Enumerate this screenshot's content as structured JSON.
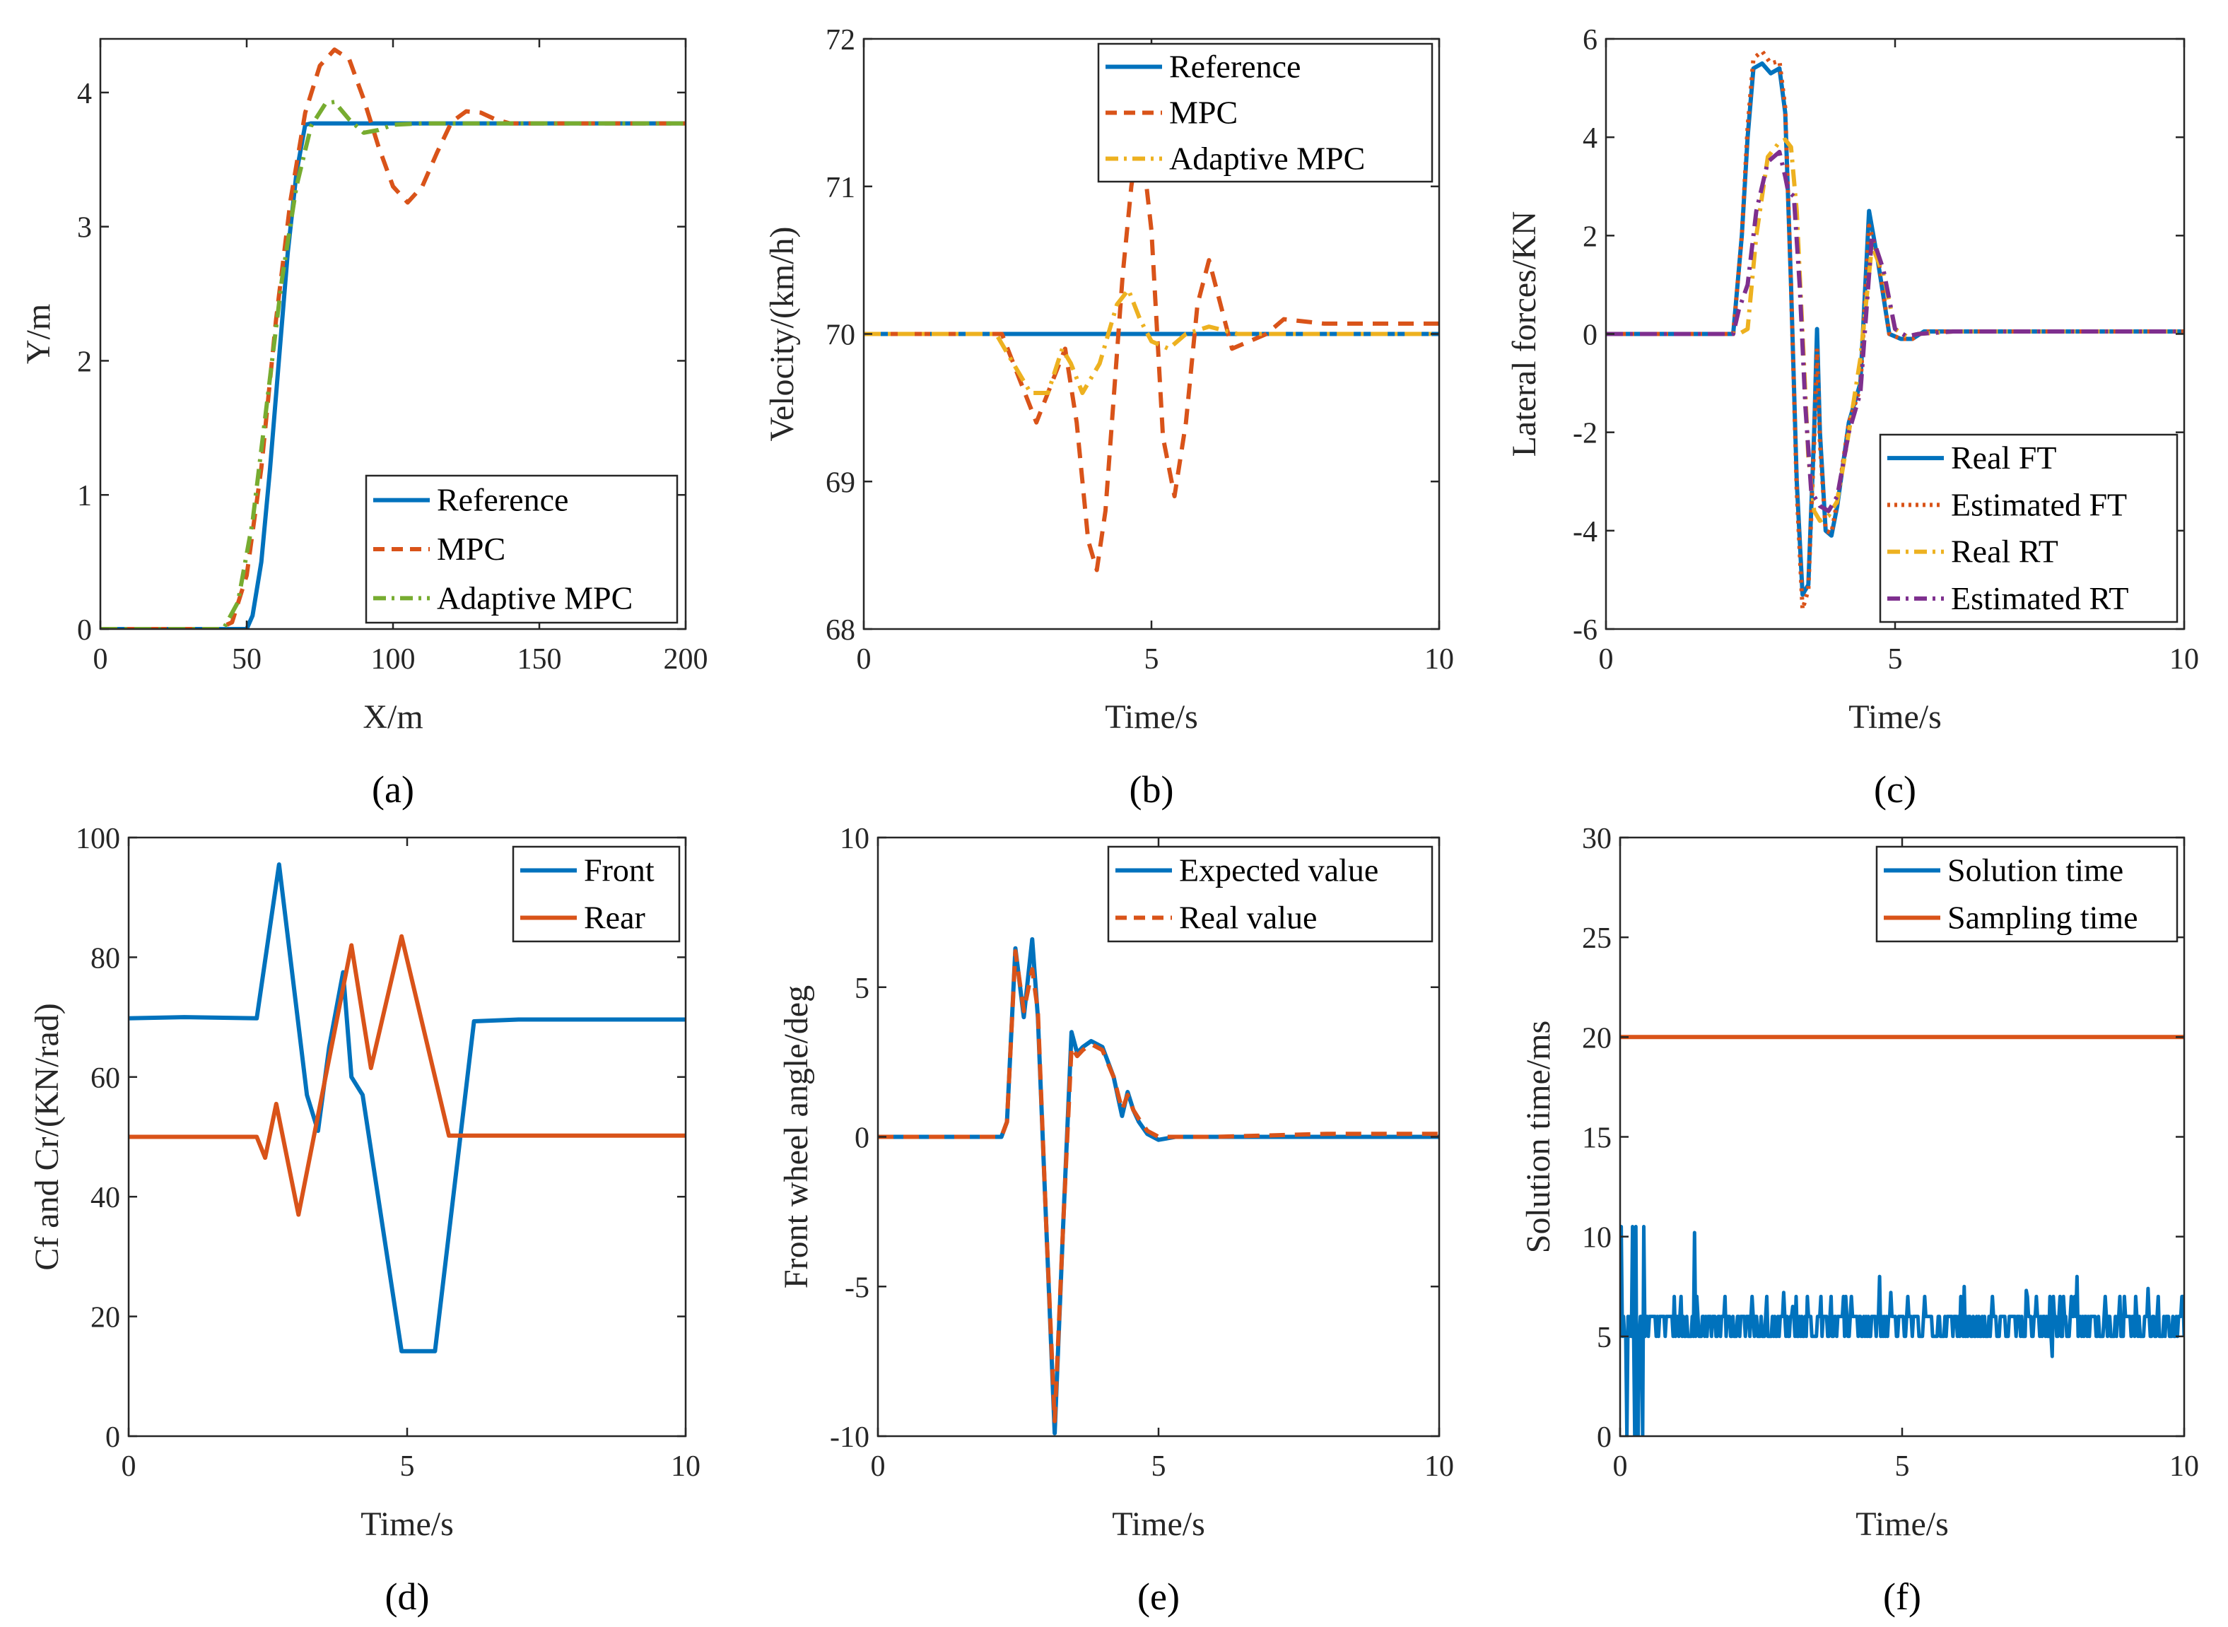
{
  "colors": {
    "blue": "#0072BD",
    "orange": "#D95319",
    "yellow": "#EDB120",
    "purple": "#7E2F8E",
    "green": "#77AC30"
  },
  "chart_data": [
    {
      "id": "a",
      "type": "line",
      "caption": "(a)",
      "xlabel": "X/m",
      "ylabel": "Y/m",
      "xlim": [
        0,
        200
      ],
      "ylim": [
        0,
        4.4
      ],
      "xticks": [
        0,
        50,
        100,
        150,
        200
      ],
      "yticks": [
        0,
        1,
        2,
        3,
        4
      ],
      "legend": "bottom-right",
      "series": [
        {
          "name": "Reference",
          "color": "#0072BD",
          "style": "solid",
          "x": [
            0,
            50,
            52,
            55,
            58,
            61,
            64,
            67,
            70,
            72,
            100,
            150,
            200
          ],
          "y": [
            0,
            0,
            0.1,
            0.5,
            1.2,
            2.0,
            2.8,
            3.4,
            3.76,
            3.77,
            3.77,
            3.77,
            3.77
          ]
        },
        {
          "name": "MPC",
          "color": "#D95319",
          "style": "dash",
          "x": [
            0,
            40,
            45,
            50,
            55,
            60,
            65,
            70,
            75,
            80,
            85,
            90,
            95,
            100,
            105,
            110,
            115,
            120,
            125,
            130,
            135,
            140,
            150,
            200
          ],
          "y": [
            0,
            0,
            0.05,
            0.4,
            1.2,
            2.3,
            3.2,
            3.85,
            4.2,
            4.32,
            4.25,
            3.95,
            3.6,
            3.3,
            3.18,
            3.3,
            3.55,
            3.78,
            3.86,
            3.85,
            3.8,
            3.77,
            3.77,
            3.77
          ]
        },
        {
          "name": "Adaptive MPC",
          "color": "#77AC30",
          "style": "dashdot",
          "x": [
            0,
            42,
            47,
            52,
            57,
            62,
            67,
            72,
            77,
            80,
            85,
            90,
            95,
            100,
            110,
            200
          ],
          "y": [
            0,
            0,
            0.2,
            0.8,
            1.7,
            2.6,
            3.3,
            3.75,
            3.92,
            3.93,
            3.8,
            3.7,
            3.72,
            3.76,
            3.77,
            3.77
          ]
        }
      ]
    },
    {
      "id": "b",
      "type": "line",
      "caption": "(b)",
      "xlabel": "Time/s",
      "ylabel": "Velocity/(km/h)",
      "xlim": [
        0,
        10
      ],
      "ylim": [
        68,
        72
      ],
      "xticks": [
        0,
        5,
        10
      ],
      "yticks": [
        68,
        69,
        70,
        71,
        72
      ],
      "legend": "top-right",
      "series": [
        {
          "name": "Reference",
          "color": "#0072BD",
          "style": "solid",
          "x": [
            0,
            10
          ],
          "y": [
            70,
            70
          ]
        },
        {
          "name": "MPC",
          "color": "#D95319",
          "style": "dash",
          "x": [
            0,
            2.4,
            2.7,
            3.0,
            3.3,
            3.5,
            3.7,
            3.9,
            4.05,
            4.2,
            4.35,
            4.5,
            4.65,
            4.8,
            5.0,
            5.2,
            5.4,
            5.6,
            5.8,
            6.0,
            6.2,
            6.4,
            6.7,
            7.0,
            7.3,
            8,
            10
          ],
          "y": [
            70,
            70,
            69.7,
            69.4,
            69.7,
            69.9,
            69.4,
            68.6,
            68.4,
            68.8,
            69.6,
            70.4,
            71.0,
            71.4,
            70.7,
            69.3,
            68.9,
            69.4,
            70.2,
            70.5,
            70.2,
            69.9,
            69.95,
            70.0,
            70.1,
            70.07,
            70.07
          ]
        },
        {
          "name": "Adaptive MPC",
          "color": "#EDB120",
          "style": "dashdot",
          "x": [
            0,
            2.3,
            2.6,
            2.9,
            3.2,
            3.45,
            3.6,
            3.8,
            4.1,
            4.4,
            4.6,
            4.8,
            5.0,
            5.3,
            5.6,
            6.0,
            6.5,
            7,
            10
          ],
          "y": [
            70,
            70,
            69.8,
            69.6,
            69.6,
            69.9,
            69.8,
            69.6,
            69.8,
            70.2,
            70.3,
            70.1,
            69.95,
            69.9,
            70.0,
            70.05,
            70.0,
            70.0,
            70.0
          ]
        }
      ]
    },
    {
      "id": "c",
      "type": "line",
      "caption": "(c)",
      "xlabel": "Time/s",
      "ylabel": "Lateral forces/KN",
      "xlim": [
        0,
        10
      ],
      "ylim": [
        -6,
        6
      ],
      "xticks": [
        0,
        5,
        10
      ],
      "yticks": [
        -6,
        -4,
        -2,
        0,
        2,
        4,
        6
      ],
      "legend": "bottom-right",
      "series": [
        {
          "name": "Real FT",
          "color": "#0072BD",
          "style": "solid",
          "x": [
            0,
            2.2,
            2.35,
            2.45,
            2.55,
            2.7,
            2.85,
            3.0,
            3.1,
            3.2,
            3.3,
            3.4,
            3.5,
            3.6,
            3.65,
            3.7,
            3.8,
            3.9,
            4.0,
            4.2,
            4.4,
            4.55,
            4.7,
            4.9,
            5.1,
            5.3,
            5.5,
            6,
            10
          ],
          "y": [
            0,
            0,
            2,
            4,
            5.4,
            5.5,
            5.3,
            5.4,
            4.5,
            1,
            -3,
            -5.3,
            -5.1,
            -2,
            0.1,
            -2,
            -4,
            -4.1,
            -3.5,
            -1.8,
            -1,
            2.5,
            1.5,
            0,
            -0.1,
            -0.1,
            0.05,
            0.05,
            0.05
          ]
        },
        {
          "name": "Estimated FT",
          "color": "#D95319",
          "style": "dot",
          "x": [
            0,
            2.2,
            2.35,
            2.45,
            2.55,
            2.7,
            2.85,
            3.0,
            3.1,
            3.2,
            3.3,
            3.4,
            3.5,
            3.6,
            3.65,
            3.7,
            3.8,
            3.9,
            4.0,
            4.2,
            4.4,
            4.55,
            4.7,
            4.9,
            5.1,
            5.3,
            5.5,
            6,
            10
          ],
          "y": [
            0,
            0,
            2,
            4.2,
            5.6,
            5.75,
            5.5,
            5.55,
            4.6,
            1,
            -3.2,
            -5.6,
            -5.2,
            -2.2,
            -0.3,
            -2.2,
            -4,
            -4.05,
            -3.4,
            -1.8,
            -1.1,
            2.2,
            1.6,
            0,
            -0.1,
            -0.1,
            0.05,
            0.05,
            0.05
          ]
        },
        {
          "name": "Real RT",
          "color": "#EDB120",
          "style": "dashdot",
          "x": [
            0,
            2.3,
            2.45,
            2.6,
            2.8,
            3.0,
            3.1,
            3.2,
            3.3,
            3.4,
            3.5,
            3.6,
            3.7,
            3.85,
            4.0,
            4.2,
            4.4,
            4.6,
            4.8,
            5.0,
            5.2,
            5.4,
            6,
            10
          ],
          "y": [
            0,
            0,
            0.1,
            2,
            3.6,
            3.9,
            3.95,
            3.8,
            2.5,
            0,
            -2.5,
            -3.6,
            -3.8,
            -3.7,
            -3.4,
            -2,
            -0.5,
            1.8,
            1.2,
            0.1,
            -0.05,
            0,
            0.05,
            0.05
          ]
        },
        {
          "name": "Estimated RT",
          "color": "#7E2F8E",
          "style": "dashdot",
          "x": [
            0,
            2.2,
            2.3,
            2.45,
            2.6,
            2.8,
            3.0,
            3.1,
            3.15,
            3.25,
            3.35,
            3.45,
            3.55,
            3.7,
            3.85,
            4.0,
            4.2,
            4.4,
            4.6,
            4.8,
            5.0,
            5.2,
            5.4,
            6,
            10
          ],
          "y": [
            0,
            0,
            0.5,
            1,
            2.5,
            3.5,
            3.7,
            3.2,
            2.9,
            2.8,
            1,
            -1.5,
            -3.2,
            -3.5,
            -3.6,
            -3.3,
            -2,
            -1.2,
            2,
            1.3,
            0.1,
            -0.05,
            0,
            0.05,
            0.05
          ]
        }
      ]
    },
    {
      "id": "d",
      "type": "line",
      "caption": "(d)",
      "xlabel": "Time/s",
      "ylabel": "Cf and Cr/(KN/rad)",
      "xlim": [
        0,
        10
      ],
      "ylim": [
        0,
        100
      ],
      "xticks": [
        0,
        5,
        10
      ],
      "yticks": [
        0,
        20,
        40,
        60,
        80,
        100
      ],
      "legend": "top-right",
      "series": [
        {
          "name": "Front",
          "color": "#0072BD",
          "style": "solid",
          "x": [
            0,
            1,
            2.3,
            2.7,
            3.2,
            3.4,
            3.6,
            3.85,
            4.0,
            4.2,
            4.9,
            5.5,
            6.2,
            7,
            10
          ],
          "y": [
            69.8,
            70,
            69.8,
            95.5,
            57,
            51,
            65,
            77.5,
            60,
            57,
            14.2,
            14.2,
            69.3,
            69.6,
            69.6
          ]
        },
        {
          "name": "Rear",
          "color": "#D95319",
          "style": "solid",
          "x": [
            0,
            2.3,
            2.45,
            2.65,
            3.05,
            4.0,
            4.35,
            4.9,
            5.75,
            6.5,
            10
          ],
          "y": [
            50,
            50,
            46.5,
            55.5,
            37,
            82,
            61.5,
            83.5,
            50.2,
            50.2,
            50.2
          ]
        }
      ]
    },
    {
      "id": "e",
      "type": "line",
      "caption": "(e)",
      "xlabel": "Time/s",
      "ylabel": "Front wheel angle/deg",
      "xlim": [
        0,
        10
      ],
      "ylim": [
        -10,
        10
      ],
      "xticks": [
        0,
        5,
        10
      ],
      "yticks": [
        -10,
        -5,
        0,
        5,
        10
      ],
      "legend": "top-right",
      "series": [
        {
          "name": "Expected value",
          "color": "#0072BD",
          "style": "solid",
          "x": [
            0,
            2.2,
            2.3,
            2.45,
            2.6,
            2.75,
            2.85,
            3.0,
            3.15,
            3.3,
            3.45,
            3.55,
            3.65,
            3.8,
            4.0,
            4.2,
            4.35,
            4.45,
            4.55,
            4.65,
            4.8,
            5.0,
            5.3,
            6,
            10
          ],
          "y": [
            0,
            0,
            0.5,
            6.3,
            4,
            6.6,
            4,
            -3,
            -9.9,
            -3,
            3.5,
            2.8,
            3,
            3.2,
            3,
            2,
            0.7,
            1.5,
            0.9,
            0.5,
            0.1,
            -0.1,
            0,
            0,
            0
          ]
        },
        {
          "name": "Real value",
          "color": "#D95319",
          "style": "dash",
          "x": [
            0,
            2.2,
            2.3,
            2.45,
            2.6,
            2.75,
            2.85,
            3.0,
            3.15,
            3.3,
            3.45,
            3.55,
            3.65,
            3.8,
            4.0,
            4.2,
            4.35,
            4.45,
            4.55,
            4.65,
            4.8,
            5.0,
            5.3,
            6,
            8,
            10
          ],
          "y": [
            0,
            0,
            0.5,
            6.2,
            4.2,
            5.6,
            4.2,
            -3,
            -9.5,
            -3,
            3,
            2.7,
            2.9,
            3.1,
            2.9,
            2,
            0.9,
            1.4,
            0.9,
            0.6,
            0.2,
            0,
            0,
            0,
            0.1,
            0.1
          ]
        }
      ]
    },
    {
      "id": "f",
      "type": "line",
      "caption": "(f)",
      "xlabel": "Time/s",
      "ylabel": "Solution time/ms",
      "xlim": [
        0,
        10
      ],
      "ylim": [
        0,
        30
      ],
      "xticks": [
        0,
        5,
        10
      ],
      "yticks": [
        0,
        5,
        10,
        15,
        20,
        25,
        30
      ],
      "legend": "top-right",
      "series": [
        {
          "name": "Solution time",
          "color": "#0072BD",
          "style": "solid",
          "noisy": true,
          "base": 6,
          "low": 5
        },
        {
          "name": "Sampling time",
          "color": "#D95319",
          "style": "solid",
          "x": [
            0,
            10
          ],
          "y": [
            20,
            20
          ]
        }
      ]
    }
  ]
}
